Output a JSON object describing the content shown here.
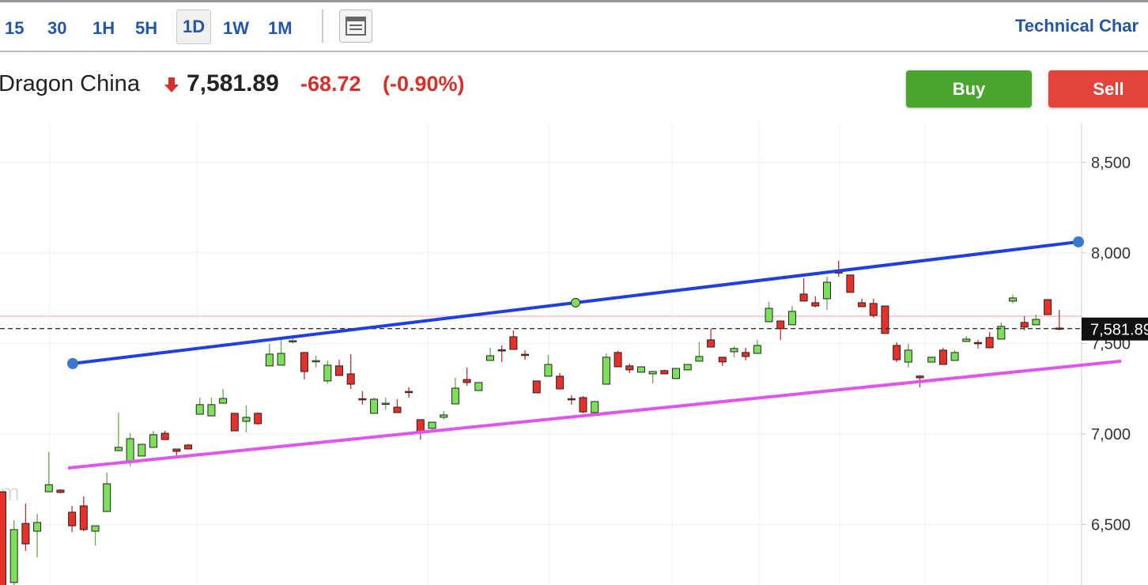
{
  "toolbar": {
    "timeframes": [
      "15",
      "30",
      "1H",
      "5H",
      "1D",
      "1W",
      "1M"
    ],
    "selected_index": 4,
    "link": "Technical Char"
  },
  "header": {
    "name": "Dragon China",
    "price": "7,581.89",
    "change": "-68.72",
    "change_pct": "(-0.90%)",
    "buy": "Buy",
    "sell": "Sell"
  },
  "chart_data": {
    "type": "candlestick",
    "watermark": "m",
    "open": [
      6681,
      6180,
      6506,
      6463,
      6681,
      6690,
      6568,
      6603,
      6463,
      6572,
      6908,
      6847,
      6878,
      6926,
      7004,
      6917,
      6939,
      7109,
      7100,
      7170,
      7114,
      7070,
      7114,
      7376,
      7380,
      7510,
      7450,
      7400,
      7293,
      7376,
      7332,
      7195,
      7114,
      7165,
      7148,
      7235,
      7079,
      7031,
      7092,
      7166,
      7301,
      7240,
      7406,
      7465,
      7537,
      7440,
      7293,
      7319,
      7319,
      7195,
      7201,
      7118,
      7275,
      7450,
      7376,
      7341,
      7332,
      7350,
      7306,
      7354,
      7402,
      7520,
      7424,
      7454,
      7450,
      7445,
      7620,
      7624,
      7603,
      7773,
      7725,
      7747,
      7895,
      7878,
      7725,
      7721,
      7707,
      7489,
      7397,
      7320,
      7397,
      7463,
      7406,
      7511,
      7505,
      7533,
      7524,
      7734,
      7616,
      7603,
      7742,
      7585
    ],
    "high": [
      6681,
      6524,
      6616,
      6559,
      6900,
      6695,
      6603,
      6655,
      6493,
      6786,
      7118,
      7004,
      6943,
      7017,
      7017,
      6917,
      6945,
      7201,
      7201,
      7249,
      7114,
      7157,
      7120,
      7498,
      7520,
      7530,
      7450,
      7432,
      7406,
      7410,
      7441,
      7236,
      7201,
      7201,
      7192,
      7258,
      7079,
      7065,
      7127,
      7310,
      7367,
      7284,
      7476,
      7489,
      7572,
      7463,
      7293,
      7437,
      7336,
      7214,
      7210,
      7179,
      7445,
      7459,
      7389,
      7371,
      7345,
      7355,
      7362,
      7384,
      7507,
      7581,
      7424,
      7485,
      7476,
      7520,
      7729,
      7624,
      7707,
      7860,
      7760,
      7869,
      7956,
      7878,
      7747,
      7747,
      7707,
      7507,
      7498,
      7325,
      7424,
      7476,
      7463,
      7541,
      7520,
      7563,
      7616,
      7769,
      7651,
      7659,
      7745,
      7686
    ],
    "low": [
      6150,
      6150,
      6354,
      6319,
      6681,
      6672,
      6458,
      6463,
      6384,
      6572,
      6908,
      6821,
      6878,
      6926,
      6969,
      6873,
      6915,
      7109,
      7100,
      7170,
      7017,
      7009,
      7050,
      7376,
      7380,
      7500,
      7301,
      7367,
      7279,
      7323,
      7249,
      7162,
      7114,
      7135,
      7118,
      7201,
      6969,
      7009,
      7079,
      7166,
      7266,
      7240,
      7406,
      7397,
      7467,
      7410,
      7227,
      7319,
      7249,
      7162,
      7114,
      7100,
      7275,
      7371,
      7336,
      7341,
      7279,
      7330,
      7306,
      7354,
      7402,
      7480,
      7376,
      7424,
      7406,
      7445,
      7620,
      7520,
      7603,
      7734,
      7699,
      7686,
      7869,
      7782,
      7703,
      7642,
      7555,
      7397,
      7367,
      7258,
      7397,
      7384,
      7406,
      7511,
      7472,
      7476,
      7524,
      7721,
      7572,
      7603,
      7659,
      7572
    ],
    "close": [
      6150,
      6472,
      6393,
      6511,
      6720,
      6677,
      6493,
      6472,
      6493,
      6725,
      6926,
      6974,
      6943,
      6996,
      6969,
      6904,
      6917,
      7162,
      7162,
      7196,
      7017,
      7092,
      7057,
      7441,
      7445,
      7515,
      7345,
      7405,
      7380,
      7323,
      7275,
      7190,
      7192,
      7170,
      7118,
      7230,
      7013,
      7065,
      7105,
      7253,
      7284,
      7284,
      7432,
      7460,
      7467,
      7435,
      7227,
      7384,
      7249,
      7190,
      7122,
      7179,
      7424,
      7371,
      7354,
      7371,
      7345,
      7332,
      7362,
      7384,
      7428,
      7480,
      7398,
      7472,
      7428,
      7489,
      7694,
      7581,
      7677,
      7734,
      7707,
      7838,
      7890,
      7782,
      7703,
      7655,
      7555,
      7410,
      7463,
      7310,
      7424,
      7384,
      7450,
      7524,
      7500,
      7476,
      7594,
      7751,
      7590,
      7633,
      7659,
      7581.89
    ],
    "up_color": "#7ee05a",
    "down_color": "#e8302a",
    "prev_close": 7650.61,
    "prev_close_color": "#f2a0a0",
    "last_label": "7,581.89",
    "trendlines": [
      {
        "color": "#1f3fe0",
        "values": [
          7389,
          8061
        ]
      },
      {
        "color": "#e055ee",
        "values": [
          6812,
          7402
        ]
      }
    ],
    "ylim": [
      6166,
      8720
    ],
    "yticks": [
      {
        "value": 6500,
        "label": "6,500"
      },
      {
        "value": 7000,
        "label": "7,000"
      },
      {
        "value": 7500,
        "label": "7,500"
      },
      {
        "value": 8000,
        "label": "8,000"
      },
      {
        "value": 8500,
        "label": "8,500"
      }
    ],
    "grid": true
  }
}
